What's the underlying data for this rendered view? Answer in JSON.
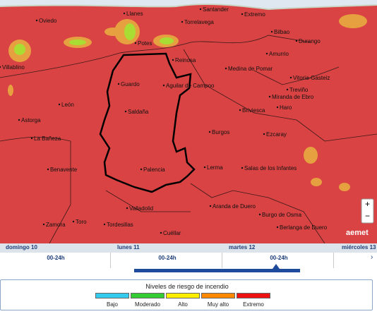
{
  "map": {
    "places": [
      "Oviedo",
      "Llanes",
      "Santander",
      "Extremo",
      "Torrelavega",
      "Bilbao",
      "Durango",
      "Amurrio",
      "Villablino",
      "Potes",
      "Reinosa",
      "Medina de Pomar",
      "Vitoria-Gasteiz",
      "Guardo",
      "Aguilar de Campoo",
      "Miranda de Ebro",
      "Treviño",
      "Haro",
      "León",
      "Saldaña",
      "Briviesca",
      "Astorga",
      "La Bañeza",
      "Burgos",
      "Ezcaray",
      "Benavente",
      "Palencia",
      "Lerma",
      "Salas de los Infantes",
      "Valladolid",
      "Aranda de Duero",
      "Burgo de Osma",
      "Berlanga de Duero",
      "Zamora",
      "Toro",
      "Tordesillas",
      "Cuéllar"
    ],
    "zoom_in": "+",
    "zoom_out": "−",
    "logo": "aemet"
  },
  "timeline": {
    "days": [
      {
        "day": "domingo 10",
        "period": "00-24h"
      },
      {
        "day": "lunes 11",
        "period": "00-24h"
      },
      {
        "day": "martes 12",
        "period": "00-24h"
      },
      {
        "day": "miércoles 13",
        "period": ""
      }
    ],
    "next": "›"
  },
  "legend": {
    "title": "Niveles de riesgo de incendio",
    "levels": [
      {
        "label": "Bajo",
        "color": "#33ccee"
      },
      {
        "label": "Moderado",
        "color": "#33cc33"
      },
      {
        "label": "Alto",
        "color": "#ffee00"
      },
      {
        "label": "Muy alto",
        "color": "#ff8800"
      },
      {
        "label": "Extremo",
        "color": "#ee1111"
      }
    ]
  }
}
